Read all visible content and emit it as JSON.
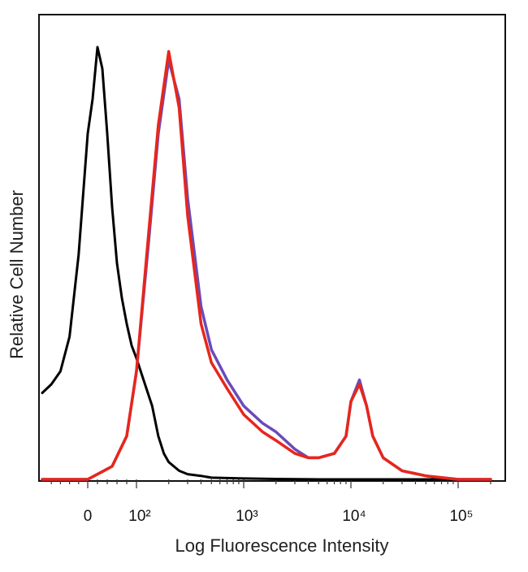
{
  "chart_data": {
    "type": "line",
    "title": "",
    "xlabel": "Log Fluorescence Intensity",
    "ylabel": "Relative Cell Number",
    "x_scale": "biexponential",
    "xlim": [
      -100,
      200000
    ],
    "ylim": [
      0,
      100
    ],
    "grid": false,
    "legend": "none",
    "x_ticks": [
      {
        "label": "0",
        "value": 0
      },
      {
        "label": "10²",
        "value": 100
      },
      {
        "label": "10³",
        "value": 1000
      },
      {
        "label": "10⁴",
        "value": 10000
      },
      {
        "label": "10⁵",
        "value": 100000
      }
    ],
    "series": [
      {
        "color": "#000000",
        "x": [
          -100,
          -80,
          -60,
          -40,
          -20,
          0,
          10,
          20,
          30,
          40,
          50,
          60,
          70,
          80,
          90,
          100,
          120,
          140,
          160,
          180,
          200,
          250,
          300,
          400,
          500,
          700,
          1000,
          2000,
          5000,
          10000,
          20000,
          50000,
          100000,
          200000
        ],
        "y": [
          20,
          22,
          25,
          33,
          52,
          80,
          88,
          100,
          95,
          80,
          63,
          50,
          42,
          36,
          31,
          28,
          22,
          17,
          10,
          6,
          4,
          2,
          1.2,
          0.8,
          0.4,
          0.3,
          0.2,
          0.1,
          0,
          0,
          0,
          0,
          0,
          0
        ]
      },
      {
        "color": "#6a4bb8",
        "x": [
          -100,
          0,
          50,
          80,
          100,
          130,
          160,
          200,
          250,
          300,
          400,
          500,
          700,
          1000,
          1500,
          2000,
          3000,
          4000,
          5000,
          7000,
          9000,
          10000,
          12000,
          14000,
          16000,
          20000,
          30000,
          50000,
          100000,
          200000
        ],
        "y": [
          0,
          0,
          3,
          10,
          25,
          55,
          80,
          97,
          88,
          65,
          40,
          30,
          23,
          17,
          13,
          11,
          7,
          5,
          5,
          6,
          10,
          18,
          23,
          17,
          10,
          5,
          2,
          0.8,
          0,
          0
        ]
      },
      {
        "color": "#e8261b",
        "x": [
          -100,
          0,
          50,
          80,
          100,
          130,
          160,
          200,
          250,
          300,
          400,
          500,
          700,
          1000,
          1500,
          2000,
          3000,
          4000,
          5000,
          7000,
          9000,
          10000,
          12000,
          14000,
          16000,
          20000,
          30000,
          50000,
          100000,
          200000
        ],
        "y": [
          0,
          0,
          3,
          10,
          25,
          57,
          82,
          99,
          86,
          61,
          36,
          27,
          21,
          15,
          11,
          9,
          6,
          5,
          5,
          6,
          10,
          18,
          22,
          17,
          10,
          5,
          2,
          0.8,
          0,
          0
        ]
      }
    ]
  }
}
